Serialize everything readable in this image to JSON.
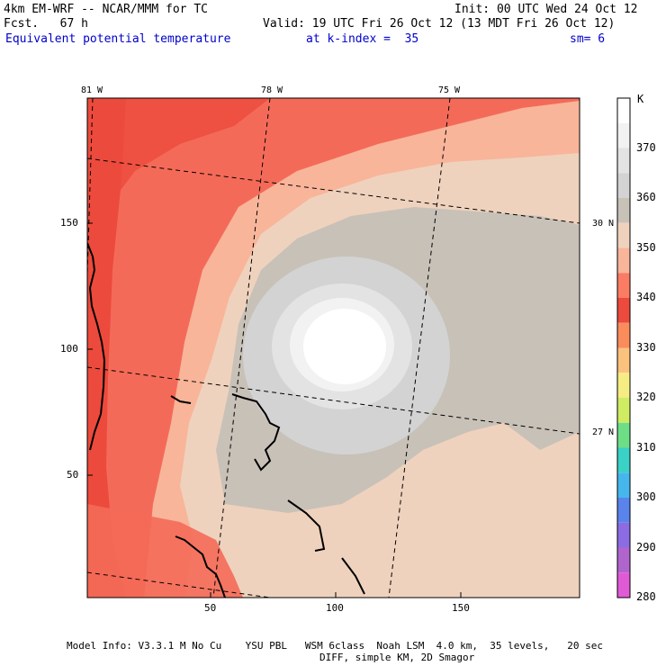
{
  "header": {
    "model_line": "4km EM-WRF -- NCAR/MMM for TC",
    "forecast_line": "Fcst.   67 h",
    "init_line": "Init: 00 UTC Wed 24 Oct 12",
    "valid_line": "Valid: 19 UTC Fri 26 Oct 12 (13 MDT Fri 26 Oct 12)",
    "field_name": "Equivalent potential temperature",
    "level": "at k-index =  35",
    "smoothing": "sm= 6"
  },
  "map": {
    "longitude_labels": [
      "81 W",
      "78 W",
      "75 W"
    ],
    "latitude_labels": [
      "30 N",
      "27 N"
    ],
    "grid_x_ticks": [
      "50",
      "100",
      "150"
    ],
    "grid_y_ticks": [
      "150",
      "100",
      "50"
    ]
  },
  "colorbar": {
    "unit": "K",
    "levels": [
      "370",
      "360",
      "350",
      "340",
      "330",
      "320",
      "310",
      "300",
      "290",
      "280"
    ],
    "colors": [
      "#ffffff",
      "#f2f2f2",
      "#e3e3e3",
      "#d3d3d3",
      "#c8c1b8",
      "#efd2bd",
      "#f8b59a",
      "#fb7c64",
      "#ec4a3c",
      "#fa8c5c",
      "#fbc27e",
      "#f5ec84",
      "#cfec62",
      "#6ede86",
      "#3ad1c6",
      "#46b7ec",
      "#5a83ec",
      "#8c6ce2",
      "#b065cc",
      "#e05ad6"
    ]
  },
  "footer": {
    "line1": "Model Info: V3.3.1 M No Cu    YSU PBL   WSM 6class  Noah LSM  4.0 km,  35 levels,   20 sec",
    "line2": "DIFF, simple KM, 2D Smagor"
  }
}
